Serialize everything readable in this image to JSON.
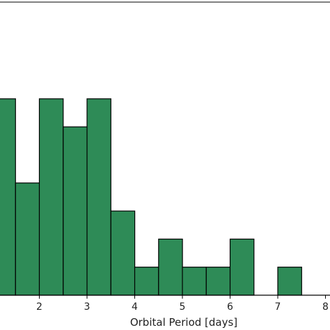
{
  "chart_data": {
    "type": "bar",
    "subtype": "histogram",
    "xlabel": "Orbital Period [days]",
    "ylabel": "",
    "x_ticks": [
      "2",
      "3",
      "4",
      "5",
      "6",
      "7",
      "8"
    ],
    "xlim": [
      1.0,
      8.0
    ],
    "ylim": [
      0,
      7
    ],
    "bin_width": 0.5,
    "bins": [
      {
        "x0": 1.0,
        "x1": 1.5,
        "count": 7
      },
      {
        "x0": 1.5,
        "x1": 2.0,
        "count": 4
      },
      {
        "x0": 2.0,
        "x1": 2.5,
        "count": 7
      },
      {
        "x0": 2.5,
        "x1": 3.0,
        "count": 6
      },
      {
        "x0": 3.0,
        "x1": 3.5,
        "count": 7
      },
      {
        "x0": 3.5,
        "x1": 4.0,
        "count": 3
      },
      {
        "x0": 4.0,
        "x1": 4.5,
        "count": 1
      },
      {
        "x0": 4.5,
        "x1": 5.0,
        "count": 2
      },
      {
        "x0": 5.0,
        "x1": 5.5,
        "count": 1
      },
      {
        "x0": 5.5,
        "x1": 6.0,
        "count": 1
      },
      {
        "x0": 6.0,
        "x1": 6.5,
        "count": 2
      },
      {
        "x0": 6.5,
        "x1": 7.0,
        "count": 0
      },
      {
        "x0": 7.0,
        "x1": 7.5,
        "count": 1
      },
      {
        "x0": 7.5,
        "x1": 8.0,
        "count": 0
      }
    ],
    "bar_color": "#2e8b57",
    "edge_color": "#000000",
    "grid": false
  }
}
